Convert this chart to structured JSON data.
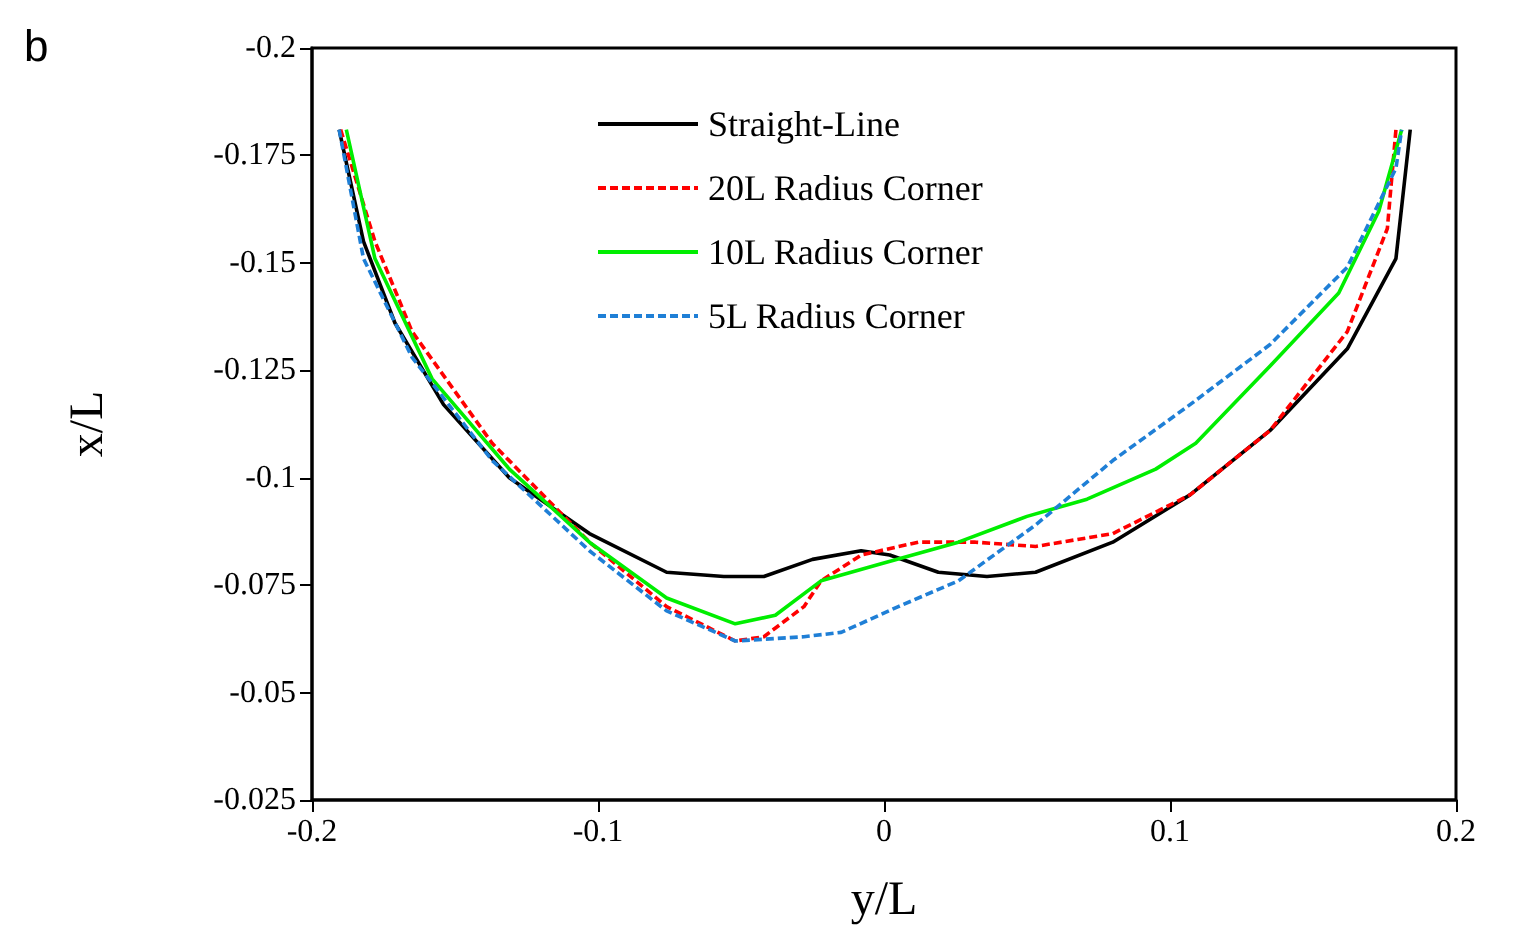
{
  "chart_data": {
    "type": "line",
    "xlabel": "y/L",
    "ylabel": "x/L",
    "annotations": [
      "b"
    ],
    "xlim": [
      -0.2,
      0.2
    ],
    "xticks": [
      -0.2,
      -0.1,
      0,
      0.1,
      0.2
    ],
    "ylim": [
      -0.025,
      -0.2
    ],
    "yticks": [
      -0.2,
      -0.175,
      -0.15,
      -0.125,
      -0.1,
      -0.075,
      -0.05,
      -0.025
    ],
    "grid": false,
    "legend": "top",
    "marker": "none",
    "series": [
      {
        "name": "Straight-Line",
        "color": "#000000",
        "line_style": "solid",
        "x": [
          -0.1905,
          -0.182,
          -0.171,
          -0.154,
          -0.131,
          -0.103,
          -0.076,
          -0.056,
          -0.042,
          -0.025,
          -0.008,
          0.002,
          0.019,
          0.036,
          0.053,
          0.08,
          0.107,
          0.135,
          0.162,
          0.179,
          0.184
        ],
        "values": [
          -0.181,
          -0.155,
          -0.136,
          -0.117,
          -0.1,
          -0.087,
          -0.078,
          -0.077,
          -0.077,
          -0.081,
          -0.083,
          -0.082,
          -0.078,
          -0.077,
          -0.078,
          -0.085,
          -0.096,
          -0.111,
          -0.13,
          -0.151,
          -0.181
        ]
      },
      {
        "name": "20L Radius Corner",
        "color": "#ff0000",
        "line_style": "dashed",
        "x": [
          -0.19,
          -0.178,
          -0.165,
          -0.137,
          -0.103,
          -0.076,
          -0.052,
          -0.042,
          -0.028,
          -0.022,
          -0.008,
          0.012,
          0.032,
          0.053,
          0.08,
          0.107,
          0.135,
          0.162,
          0.176,
          0.179
        ],
        "values": [
          -0.181,
          -0.155,
          -0.134,
          -0.108,
          -0.085,
          -0.07,
          -0.062,
          -0.063,
          -0.07,
          -0.076,
          -0.082,
          -0.085,
          -0.085,
          -0.084,
          -0.087,
          -0.096,
          -0.111,
          -0.134,
          -0.158,
          -0.181
        ]
      },
      {
        "name": "10L Radius Corner",
        "color": "#00ee00",
        "line_style": "solid",
        "x": [
          -0.188,
          -0.178,
          -0.158,
          -0.131,
          -0.103,
          -0.076,
          -0.052,
          -0.038,
          -0.022,
          -0.001,
          0.026,
          0.05,
          0.071,
          0.095,
          0.109,
          0.135,
          0.159,
          0.173,
          0.181
        ],
        "values": [
          -0.181,
          -0.151,
          -0.123,
          -0.102,
          -0.085,
          -0.072,
          -0.066,
          -0.068,
          -0.076,
          -0.08,
          -0.085,
          -0.091,
          -0.095,
          -0.102,
          -0.108,
          -0.126,
          -0.143,
          -0.162,
          -0.181
        ]
      },
      {
        "name": "5L Radius Corner",
        "color": "#1f7fd6",
        "line_style": "dashed",
        "x": [
          -0.1905,
          -0.182,
          -0.165,
          -0.137,
          -0.103,
          -0.076,
          -0.052,
          -0.028,
          -0.015,
          0.005,
          0.026,
          0.053,
          0.08,
          0.107,
          0.135,
          0.162,
          0.179,
          0.181
        ],
        "values": [
          -0.181,
          -0.151,
          -0.128,
          -0.104,
          -0.083,
          -0.069,
          -0.062,
          -0.063,
          -0.064,
          -0.07,
          -0.076,
          -0.089,
          -0.104,
          -0.117,
          -0.131,
          -0.149,
          -0.172,
          -0.181
        ]
      }
    ]
  }
}
